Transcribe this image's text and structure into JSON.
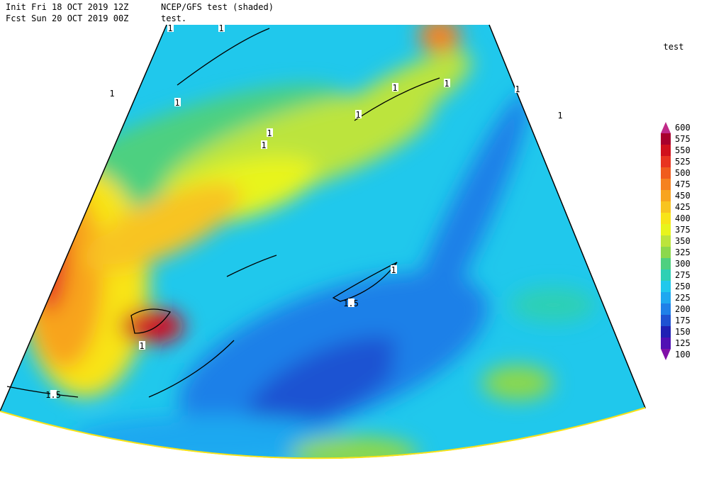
{
  "header": {
    "init": "Init  Fri 18 OCT 2019 12Z",
    "forecast": "Fcst Sun 20 OCT 2019 00Z",
    "product": "NCEP/GFS test (shaded)",
    "contour_field": "test."
  },
  "legend": {
    "title": "test",
    "levels": [
      {
        "label": "600",
        "color": "#c02a88"
      },
      {
        "label": "575",
        "color": "#a8002c"
      },
      {
        "label": "550",
        "color": "#d0101c"
      },
      {
        "label": "525",
        "color": "#e83420"
      },
      {
        "label": "500",
        "color": "#f05c1e"
      },
      {
        "label": "475",
        "color": "#f58220"
      },
      {
        "label": "450",
        "color": "#f8a41e"
      },
      {
        "label": "425",
        "color": "#f8c420"
      },
      {
        "label": "400",
        "color": "#f8e418"
      },
      {
        "label": "375",
        "color": "#e8f41c"
      },
      {
        "label": "350",
        "color": "#bce43c"
      },
      {
        "label": "325",
        "color": "#8cd84c"
      },
      {
        "label": "300",
        "color": "#4ed080"
      },
      {
        "label": "275",
        "color": "#2ed0b4"
      },
      {
        "label": "250",
        "color": "#20c8ec"
      },
      {
        "label": "225",
        "color": "#1ea8f0"
      },
      {
        "label": "200",
        "color": "#1e80e8"
      },
      {
        "label": "175",
        "color": "#1e52d2"
      },
      {
        "label": "150",
        "color": "#2020b4"
      },
      {
        "label": "125",
        "color": "#5010b4"
      },
      {
        "label": "100",
        "color": "#8010a8"
      }
    ]
  },
  "contour_labels": [
    "1",
    "1",
    "1",
    "1",
    "1",
    "1",
    "1",
    "1",
    "1",
    "1",
    "1",
    "1",
    "1",
    "1.5",
    "1.5"
  ]
}
